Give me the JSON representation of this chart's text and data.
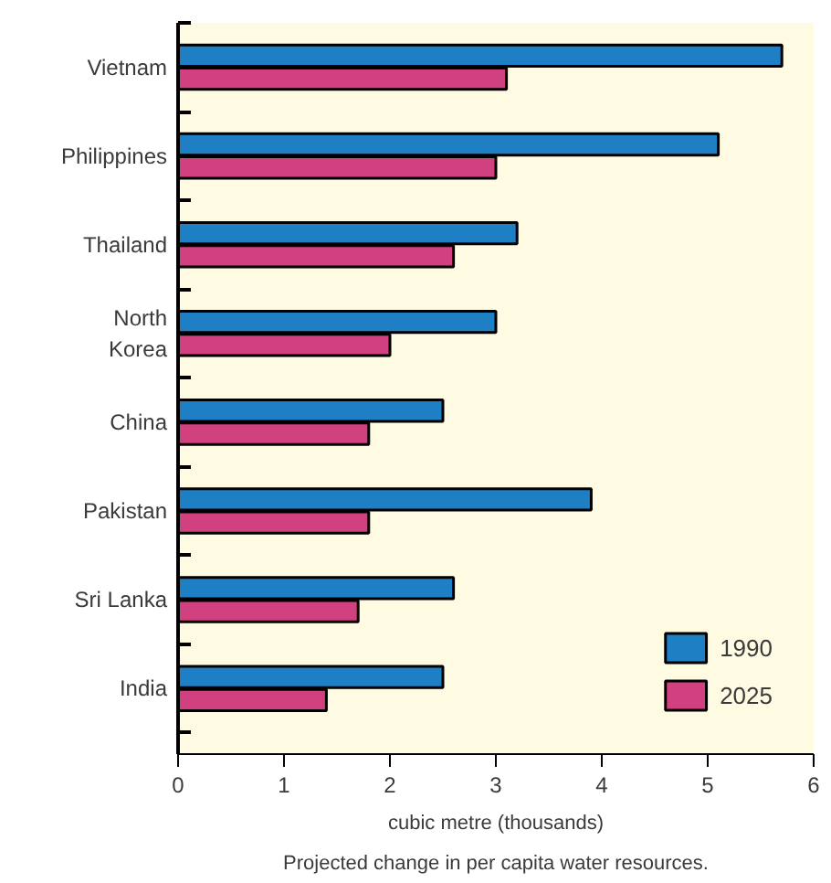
{
  "chart_data": {
    "type": "bar",
    "orientation": "horizontal",
    "categories": [
      "Vietnam",
      "Philippines",
      "Thailand",
      "North\nKorea",
      "China",
      "Pakistan",
      "Sri Lanka",
      "India"
    ],
    "series": [
      {
        "name": "1990",
        "color": "#1f7fc4",
        "values": [
          5.7,
          5.1,
          3.2,
          3.0,
          2.5,
          3.9,
          2.6,
          2.5
        ]
      },
      {
        "name": "2025",
        "color": "#d2417f",
        "values": [
          3.1,
          3.0,
          2.6,
          2.0,
          1.8,
          1.8,
          1.7,
          1.4
        ]
      }
    ],
    "xlim": [
      0,
      6
    ],
    "xticks": [
      0,
      1,
      2,
      3,
      4,
      5,
      6
    ],
    "xlabel": "cubic metre (thousands)",
    "annotations": [
      "Projected change in per capita water resources."
    ],
    "legend": "bottom right",
    "grid": false
  }
}
